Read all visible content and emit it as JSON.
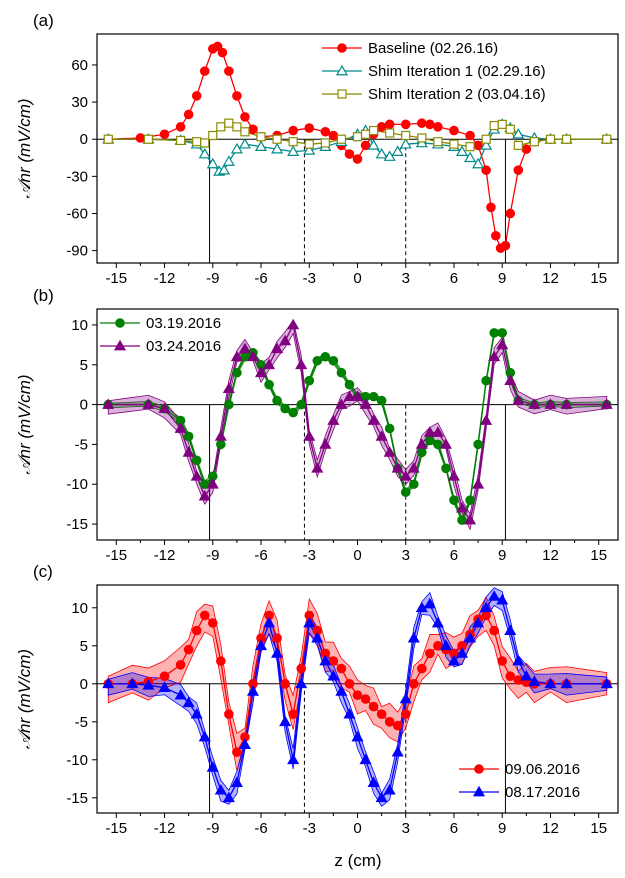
{
  "figure": {
    "xlabel": "z (cm)",
    "ylabel": "𝒜nr (mV/cm)",
    "xticks": [
      -15,
      -12,
      -9,
      -6,
      -3,
      0,
      3,
      6,
      9,
      12,
      15
    ]
  },
  "chart_data": [
    {
      "type": "line",
      "panel_label": "(a)",
      "xlim": [
        -16.2,
        16.2
      ],
      "ylim": [
        -100,
        85
      ],
      "yticks": [
        -90,
        -60,
        -30,
        0,
        30,
        60
      ],
      "xticks": [
        -15,
        -12,
        -9,
        -6,
        -3,
        0,
        3,
        6,
        9,
        12,
        15
      ],
      "grid": false,
      "legend_position": "top-right",
      "vlines": [
        {
          "x": -9.2,
          "style": "solid"
        },
        {
          "x": -3.3,
          "style": "dashed"
        },
        {
          "x": 3.0,
          "style": "dashed"
        },
        {
          "x": 9.2,
          "style": "solid"
        }
      ],
      "zero_line": true,
      "series": [
        {
          "name": "Baseline (02.26.16)",
          "color": "#ff0000",
          "marker": "circle",
          "filled": true,
          "x": [
            -15.5,
            -13.5,
            -12,
            -11,
            -10.5,
            -10,
            -9.5,
            -9,
            -8.7,
            -8.4,
            -8,
            -7.5,
            -7,
            -6.5,
            -6,
            -5,
            -4,
            -3,
            -2,
            -1.5,
            -1,
            -0.5,
            0,
            0.5,
            1,
            1.5,
            2,
            3,
            4,
            4.5,
            5,
            6,
            7,
            7.5,
            8,
            8.3,
            8.6,
            8.9,
            9.2,
            9.5,
            10,
            10.5,
            11,
            12,
            13,
            15.5
          ],
          "y": [
            0,
            1,
            4,
            10,
            20,
            35,
            55,
            73,
            75,
            70,
            55,
            35,
            18,
            8,
            2,
            3,
            7,
            9,
            6,
            3,
            -5,
            -12,
            -16,
            -5,
            4,
            10,
            12,
            12,
            13,
            12,
            10,
            7,
            3,
            -5,
            -25,
            -55,
            -78,
            -88,
            -86,
            -60,
            -25,
            -8,
            -2,
            0,
            0,
            0
          ]
        },
        {
          "name": "Shim Iteration 1 (02.29.16)",
          "color": "#008b8b",
          "marker": "triangle",
          "filled": false,
          "x": [
            -15.5,
            -13,
            -11,
            -10,
            -9.5,
            -9,
            -8.6,
            -8.3,
            -8,
            -7.5,
            -7,
            -6,
            -5,
            -4,
            -3,
            -2,
            -1,
            0,
            0.5,
            1,
            1.5,
            2,
            2.5,
            3,
            4,
            5,
            6,
            6.5,
            7,
            7.5,
            8,
            8.5,
            9,
            9.5,
            10,
            11,
            12,
            13,
            15.5
          ],
          "y": [
            0,
            0,
            -1,
            -4,
            -12,
            -20,
            -26,
            -25,
            -18,
            -8,
            -4,
            -6,
            -8,
            -10,
            -9,
            -6,
            -2,
            4,
            7,
            -5,
            -12,
            -14,
            -10,
            -4,
            -3,
            -4,
            -6,
            -10,
            -15,
            -20,
            -5,
            8,
            12,
            9,
            4,
            1,
            0,
            0,
            0
          ]
        },
        {
          "name": "Shim Iteration 2 (03.04.16)",
          "color": "#8b8b00",
          "marker": "square",
          "filled": false,
          "x": [
            -15.5,
            -13,
            -11,
            -10,
            -9.5,
            -9,
            -8.5,
            -8,
            -7.5,
            -7,
            -6,
            -5,
            -4,
            -3,
            -2,
            -1,
            0,
            0.5,
            1,
            2,
            3,
            4,
            5,
            6,
            7,
            8,
            8.5,
            9,
            9.5,
            10,
            11,
            12,
            13,
            15.5
          ],
          "y": [
            0,
            0,
            -1,
            -2,
            -3,
            3,
            10,
            13,
            10,
            6,
            2,
            0,
            -2,
            -4,
            -3,
            0,
            2,
            4,
            7,
            5,
            3,
            1,
            -2,
            -4,
            -6,
            0,
            11,
            12,
            8,
            -5,
            -2,
            0,
            0,
            0
          ]
        }
      ]
    },
    {
      "type": "line",
      "panel_label": "(b)",
      "xlim": [
        -16.2,
        16.2
      ],
      "ylim": [
        -17,
        12
      ],
      "yticks": [
        -15,
        -10,
        -5,
        0,
        5,
        10
      ],
      "xticks": [
        -15,
        -12,
        -9,
        -6,
        -3,
        0,
        3,
        6,
        9,
        12,
        15
      ],
      "grid": false,
      "legend_position": "top-left",
      "vlines": [
        {
          "x": -9.2,
          "style": "solid"
        },
        {
          "x": -3.3,
          "style": "dashed"
        },
        {
          "x": 3.0,
          "style": "dashed"
        },
        {
          "x": 9.2,
          "style": "solid"
        }
      ],
      "zero_line": true,
      "series": [
        {
          "name": "03.19.2016",
          "color": "#008000",
          "marker": "circle",
          "filled": true,
          "band": 0.4,
          "x": [
            -15.5,
            -13,
            -12,
            -11,
            -10.5,
            -10,
            -9.5,
            -9,
            -8.5,
            -8,
            -7.5,
            -7,
            -6.5,
            -6,
            -5.5,
            -5,
            -4.5,
            -4,
            -3.5,
            -3,
            -2.5,
            -2,
            -1.5,
            -1,
            -0.5,
            0,
            0.5,
            1,
            1.5,
            2,
            2.5,
            3,
            3.5,
            4,
            4.5,
            5,
            5.5,
            6,
            6.5,
            7,
            7.5,
            8,
            8.5,
            9,
            9.5,
            10,
            11,
            12,
            13,
            15.5
          ],
          "y": [
            0,
            0,
            -0.5,
            -2,
            -4,
            -7,
            -10,
            -9,
            -5,
            0,
            4,
            6,
            6.5,
            5,
            2.5,
            0.5,
            -0.5,
            -1,
            0,
            3,
            5.5,
            6,
            5.5,
            4,
            2.5,
            1,
            1,
            1,
            0.5,
            -3,
            -8,
            -11,
            -10,
            -6,
            -4.5,
            -5,
            -8,
            -12,
            -14.5,
            -12,
            -5,
            3,
            9,
            9,
            4,
            0.5,
            0,
            0,
            0,
            0
          ]
        },
        {
          "name": "03.24.2016",
          "color": "#800080",
          "marker": "triangle",
          "filled": true,
          "band": 1.2,
          "x": [
            -15.5,
            -13,
            -12,
            -11,
            -10.5,
            -10,
            -9.5,
            -9,
            -8.5,
            -8,
            -7.5,
            -7,
            -6.5,
            -6,
            -5.5,
            -5,
            -4.5,
            -4,
            -3.5,
            -3,
            -2.5,
            -2,
            -1.5,
            -1,
            -0.5,
            0,
            0.5,
            1,
            1.5,
            2,
            2.5,
            3,
            3.5,
            4,
            4.5,
            5,
            5.5,
            6,
            6.5,
            7,
            7.5,
            8,
            8.5,
            9,
            9.5,
            10,
            11,
            12,
            13,
            15.5
          ],
          "y": [
            0,
            0,
            -0.5,
            -3,
            -6,
            -9,
            -11.5,
            -10,
            -4,
            2,
            6,
            7,
            6,
            4,
            5,
            7,
            8,
            10,
            5,
            -4,
            -8,
            -5,
            -2,
            0,
            1,
            1,
            0,
            -2,
            -4,
            -6,
            -8,
            -9,
            -8,
            -5,
            -3.5,
            -3.5,
            -5,
            -9,
            -13,
            -14.5,
            -10,
            -2,
            6,
            7.5,
            3,
            0.5,
            0,
            0,
            0,
            0
          ]
        }
      ]
    },
    {
      "type": "line",
      "panel_label": "(c)",
      "xlim": [
        -16.2,
        16.2
      ],
      "ylim": [
        -17,
        13
      ],
      "yticks": [
        -15,
        -10,
        -5,
        0,
        5,
        10
      ],
      "xticks": [
        -15,
        -12,
        -9,
        -6,
        -3,
        0,
        3,
        6,
        9,
        12,
        15
      ],
      "grid": false,
      "legend_position": "bottom-right",
      "vlines": [
        {
          "x": -9.2,
          "style": "solid"
        },
        {
          "x": -3.3,
          "style": "dashed"
        },
        {
          "x": 3.0,
          "style": "dashed"
        },
        {
          "x": 9.2,
          "style": "solid"
        }
      ],
      "zero_line": true,
      "series": [
        {
          "name": "09.06.2016",
          "color": "#ff0000",
          "marker": "circle",
          "filled": true,
          "band": 2.5,
          "x": [
            -15.5,
            -14,
            -13,
            -12,
            -11,
            -10.5,
            -10,
            -9.5,
            -9,
            -8.5,
            -8,
            -7.5,
            -7,
            -6.5,
            -6,
            -5.5,
            -5,
            -4.5,
            -4,
            -3.5,
            -3,
            -2.5,
            -2,
            -1.5,
            -1,
            -0.5,
            0,
            0.5,
            1,
            1.5,
            2,
            2.5,
            3,
            3.5,
            4,
            4.5,
            5,
            5.5,
            6,
            6.5,
            7,
            7.5,
            8,
            8.5,
            9,
            9.5,
            10,
            10.5,
            11,
            12,
            13,
            15.5
          ],
          "y": [
            0,
            0,
            0.3,
            1,
            2.5,
            4.5,
            7,
            9,
            8,
            3,
            -4,
            -9,
            -7,
            0,
            6,
            9,
            6,
            0,
            -4,
            2,
            9,
            7,
            4,
            3,
            2,
            0,
            -1.5,
            -2,
            -3,
            -4,
            -5,
            -5.5,
            -4,
            0,
            2,
            4,
            5,
            4.5,
            4,
            5,
            6.5,
            8.5,
            9,
            7,
            3,
            1,
            0.5,
            0.2,
            0,
            0,
            0,
            0
          ]
        },
        {
          "name": "08.17.2016",
          "color": "#0000ff",
          "marker": "triangle",
          "filled": true,
          "band": 1.5,
          "x": [
            -15.5,
            -14,
            -13,
            -12,
            -11,
            -10.5,
            -10,
            -9.5,
            -9,
            -8.5,
            -8,
            -7.5,
            -7,
            -6.5,
            -6,
            -5.5,
            -5,
            -4.5,
            -4,
            -3.5,
            -3,
            -2.5,
            -2,
            -1.5,
            -1,
            -0.5,
            0,
            0.5,
            1,
            1.5,
            2,
            2.5,
            3,
            3.5,
            4,
            4.5,
            5,
            5.5,
            6,
            6.5,
            7,
            7.5,
            8,
            8.5,
            9,
            9.5,
            10,
            10.5,
            11,
            12,
            13,
            15.5
          ],
          "y": [
            0,
            0,
            -0.2,
            -0.5,
            -1.5,
            -2.5,
            -4,
            -7,
            -11,
            -14,
            -15,
            -13,
            -8,
            -1,
            5,
            8,
            4,
            -5,
            -10,
            0,
            8,
            6,
            3,
            1,
            -1,
            -4,
            -7,
            -10,
            -13,
            -15,
            -14,
            -9,
            -2,
            6,
            10,
            10.5,
            8,
            5,
            3,
            4,
            6,
            8,
            10,
            11.5,
            11,
            7,
            3,
            1,
            0.3,
            0,
            0,
            0
          ]
        }
      ]
    }
  ]
}
